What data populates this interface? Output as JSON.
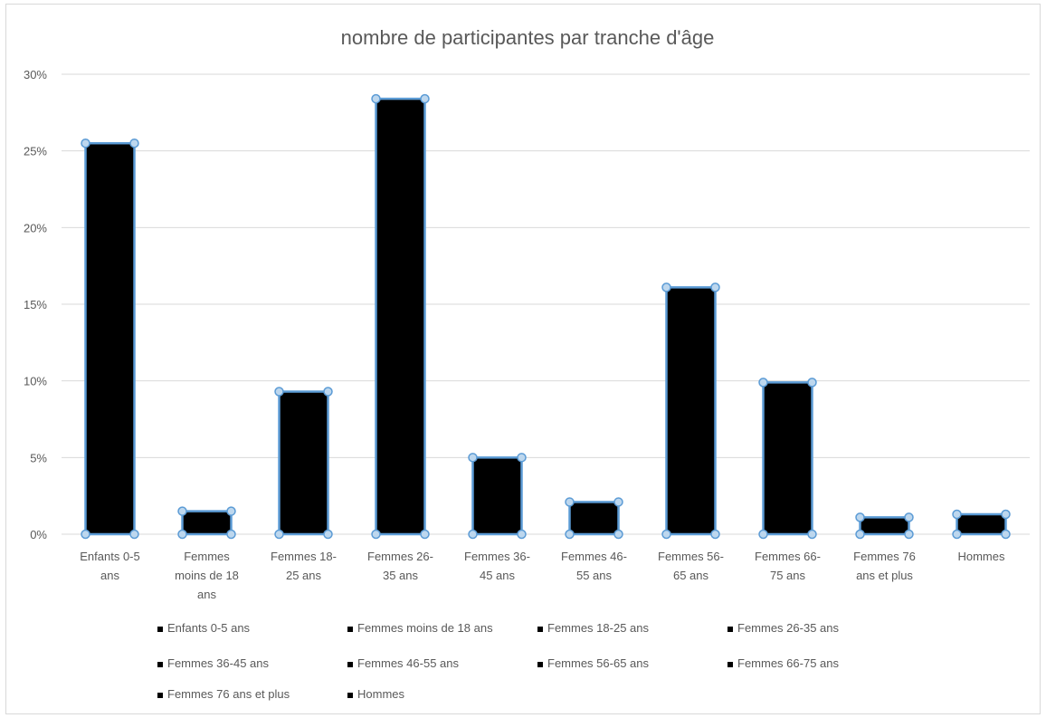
{
  "chart_data": {
    "type": "bar",
    "title": "nombre de participantes par tranche d'âge",
    "categories": [
      [
        "Enfants 0-5",
        "ans"
      ],
      [
        "Femmes",
        "moins de 18",
        "ans"
      ],
      [
        "Femmes 18-",
        "25 ans"
      ],
      [
        "Femmes 26-",
        "35 ans"
      ],
      [
        "Femmes 36-",
        "45 ans"
      ],
      [
        "Femmes 46-",
        "55 ans"
      ],
      [
        "Femmes 56-",
        "65 ans"
      ],
      [
        "Femmes 66-",
        "75 ans"
      ],
      [
        "Femmes 76",
        "ans et plus"
      ],
      [
        "Hommes"
      ]
    ],
    "values": [
      25.5,
      1.5,
      9.3,
      28.4,
      5.0,
      2.1,
      16.1,
      9.9,
      1.1,
      1.3
    ],
    "yticks": [
      "0%",
      "5%",
      "10%",
      "15%",
      "20%",
      "25%",
      "30%"
    ],
    "ylim": [
      0,
      30
    ],
    "grid": true,
    "legend": {
      "position": "bottom",
      "entries": [
        "Enfants 0-5 ans",
        "Femmes moins de 18 ans",
        "Femmes 18-25 ans",
        "Femmes 26-35 ans",
        "Femmes 36-45 ans",
        "Femmes 46-55 ans",
        "Femmes 56-65 ans",
        "Femmes 66-75 ans",
        "Femmes 76 ans et plus",
        "Hommes"
      ]
    },
    "colors": {
      "bar_fill": "#000000",
      "bar_outline": "#5b9bd5",
      "handle_fill": "#bdd7ee",
      "grid": "#d9d9d9",
      "text": "#595959"
    }
  }
}
